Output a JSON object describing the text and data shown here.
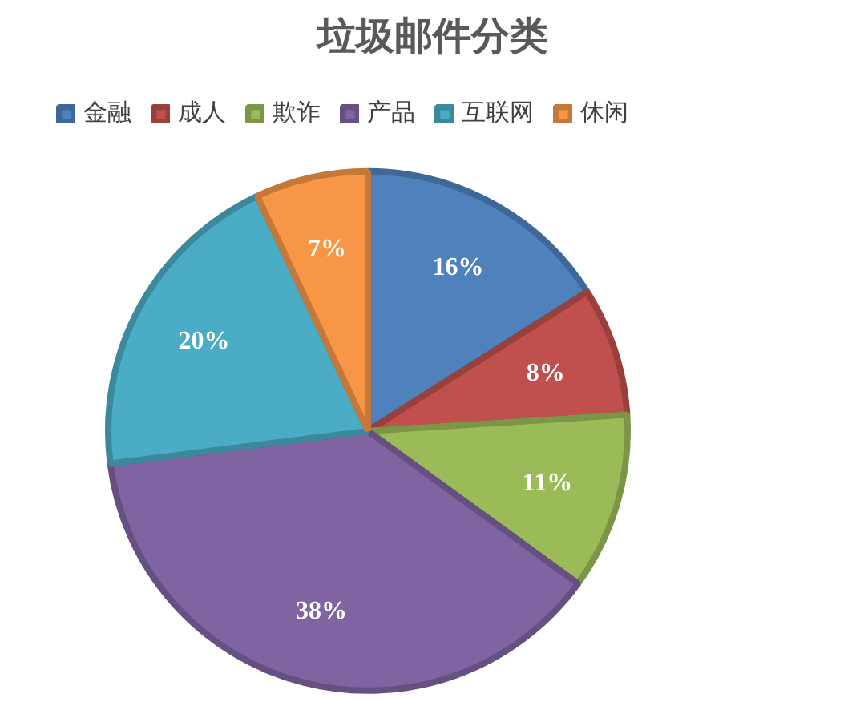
{
  "chart_data": {
    "type": "pie",
    "title": "垃圾邮件分类",
    "categories": [
      "金融",
      "成人",
      "欺诈",
      "产品",
      "互联网",
      "休闲"
    ],
    "values": [
      16,
      8,
      11,
      38,
      20,
      7
    ],
    "colors": [
      "#4f81bd",
      "#c0504d",
      "#9bbb59",
      "#8064a2",
      "#4bacc6",
      "#f79646"
    ],
    "value_labels": [
      "16%",
      "8%",
      "11%",
      "38%",
      "20%",
      "7%"
    ],
    "legend": "top"
  }
}
